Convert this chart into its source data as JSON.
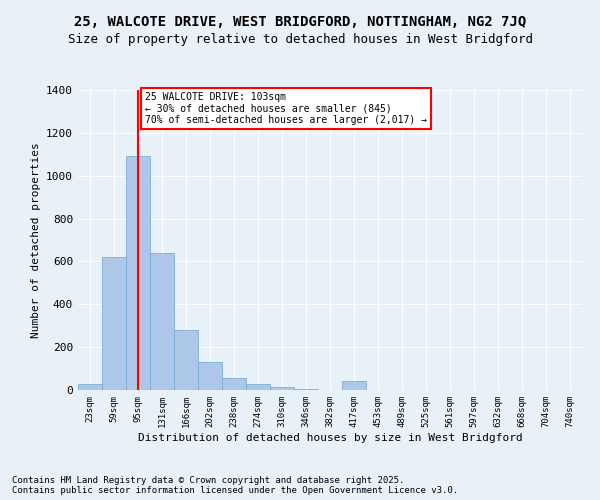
{
  "title": "25, WALCOTE DRIVE, WEST BRIDGFORD, NOTTINGHAM, NG2 7JQ",
  "subtitle": "Size of property relative to detached houses in West Bridgford",
  "xlabel": "Distribution of detached houses by size in West Bridgford",
  "ylabel": "Number of detached properties",
  "categories": [
    "23sqm",
    "59sqm",
    "95sqm",
    "131sqm",
    "166sqm",
    "202sqm",
    "238sqm",
    "274sqm",
    "310sqm",
    "346sqm",
    "382sqm",
    "417sqm",
    "453sqm",
    "489sqm",
    "525sqm",
    "561sqm",
    "597sqm",
    "632sqm",
    "668sqm",
    "704sqm",
    "740sqm"
  ],
  "bar_heights": [
    30,
    620,
    1090,
    640,
    280,
    130,
    55,
    30,
    15,
    5,
    2,
    40,
    2,
    2,
    2,
    2,
    2,
    2,
    2,
    2,
    2
  ],
  "bar_color": "#aec6e8",
  "bar_edge_color": "#6aaad4",
  "background_color": "#e8f0f8",
  "grid_color": "#ffffff",
  "property_line_x": 2.0,
  "property_line_color": "red",
  "annotation_text": "25 WALCOTE DRIVE: 103sqm\n← 30% of detached houses are smaller (845)\n70% of semi-detached houses are larger (2,017) →",
  "annotation_box_color": "white",
  "annotation_box_edge": "red",
  "ylim": [
    0,
    1400
  ],
  "yticks": [
    0,
    200,
    400,
    600,
    800,
    1000,
    1200,
    1400
  ],
  "footnote": "Contains HM Land Registry data © Crown copyright and database right 2025.\nContains public sector information licensed under the Open Government Licence v3.0.",
  "title_fontsize": 10,
  "subtitle_fontsize": 9,
  "footnote_fontsize": 6.5
}
